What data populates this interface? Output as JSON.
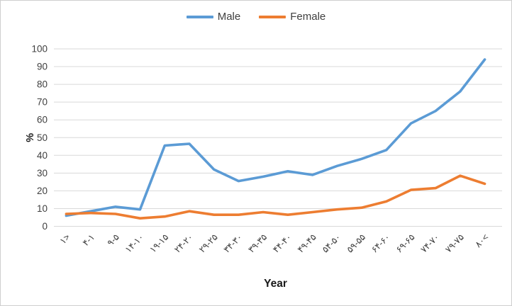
{
  "chart_data": {
    "type": "line",
    "title": "",
    "xlabel": "Year",
    "ylabel": "%",
    "ylim": [
      0,
      100
    ],
    "yticks": [
      0,
      10,
      20,
      30,
      40,
      50,
      60,
      70,
      80,
      90,
      100
    ],
    "grid": true,
    "gridline_color": "#d9d9d9",
    "legend_position": "top",
    "categories": [
      "۱>",
      "۴-۱",
      "۹-۵",
      "۱۴-۱۰",
      "۱۹-۱۵",
      "۲۴-۲۰",
      "۲۹-۲۵",
      "۳۴-۳۰",
      "۳۹-۳۵",
      "۴۴-۴۰",
      "۴۹-۴۵",
      "۵۴-۵۰",
      "۵۹-۵۵",
      "۶۴-۶۰",
      "۶۹-۶۵",
      "۷۴-۷۰",
      "۷۹-۷۵",
      "۸۰<"
    ],
    "series": [
      {
        "name": "Male",
        "color": "#5B9BD5",
        "values": [
          6,
          8.5,
          11,
          9.5,
          45.5,
          46.5,
          32,
          25.5,
          28,
          31,
          29,
          34,
          38,
          43,
          58,
          65,
          76,
          94
        ]
      },
      {
        "name": "Female",
        "color": "#ED7D31",
        "values": [
          7,
          7.5,
          7,
          4.5,
          5.5,
          8.5,
          6.5,
          6.5,
          8,
          6.5,
          8,
          9.5,
          10.5,
          14,
          20.5,
          21.5,
          28.5,
          24
        ]
      }
    ],
    "text_color": "#404040",
    "axis_title_color": "#1a1a1a"
  }
}
